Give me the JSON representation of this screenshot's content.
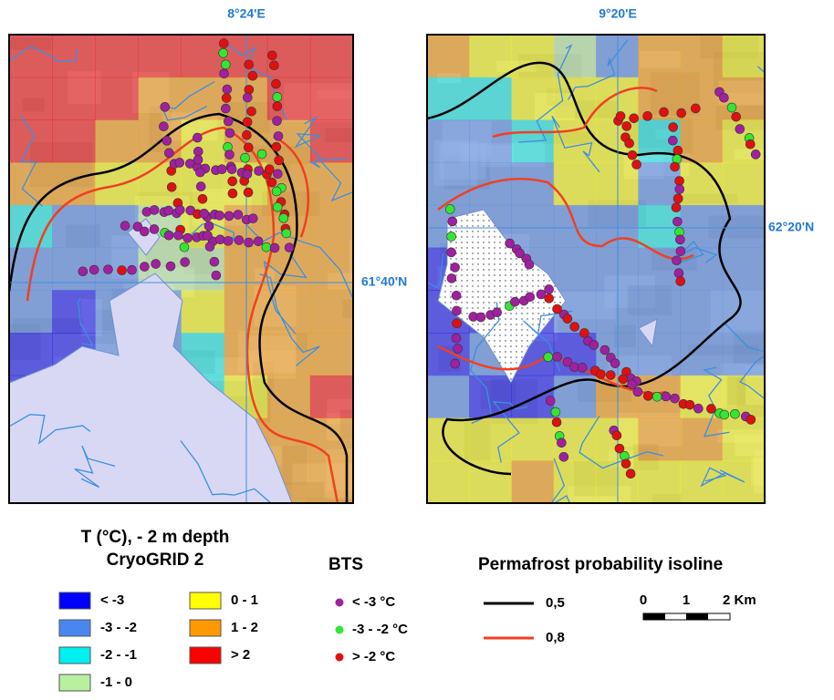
{
  "map": {
    "panels": [
      {
        "lon_label": "8°24'E",
        "lat_label": "61°40'N"
      },
      {
        "lon_label": "9°20'E",
        "lat_label": "62°20'N"
      }
    ],
    "legend": {
      "temperature": {
        "title": "T (°C), - 2 m depth",
        "subtitle": "CryoGRID 2",
        "classes": [
          {
            "label": "< -3",
            "color": "#0000ff"
          },
          {
            "label": "-3 - -2",
            "color": "#4a86f0"
          },
          {
            "label": "-2 - -1",
            "color": "#00f0f0"
          },
          {
            "label": "-1 - 0",
            "color": "#b8f0a0"
          },
          {
            "label": "0 - 1",
            "color": "#ffff00"
          },
          {
            "label": "1 - 2",
            "color": "#ff9900"
          },
          {
            "label": "> 2",
            "color": "#ff0000"
          }
        ]
      },
      "bts": {
        "title": "BTS",
        "classes": [
          {
            "label": "< -3 °C",
            "color": "#a020a0"
          },
          {
            "label": "-3 - -2 °C",
            "color": "#33e633"
          },
          {
            "label": "> -2 °C",
            "color": "#e01010"
          }
        ]
      },
      "isolines": {
        "title": "Permafrost probability isoline",
        "items": [
          {
            "label": "0,5",
            "color": "#000000"
          },
          {
            "label": "0,8",
            "color": "#f04020"
          }
        ]
      },
      "scale": {
        "labels": [
          "0",
          "1",
          "2 Km"
        ]
      }
    }
  }
}
